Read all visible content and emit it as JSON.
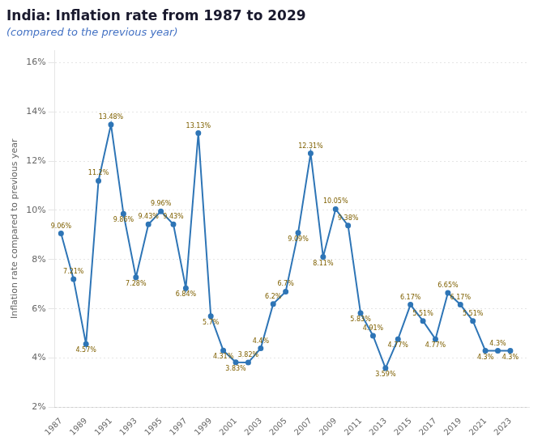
{
  "chart_data": {
    "type": "line",
    "title": "India: Inflation rate from 1987 to 2029",
    "subtitle": "(compared to the previous year)",
    "ylabel": "Inflation rate compared to previous year",
    "x": [
      1987,
      1988,
      1989,
      1990,
      1991,
      1992,
      1993,
      1994,
      1995,
      1996,
      1997,
      1998,
      1999,
      2000,
      2001,
      2002,
      2003,
      2004,
      2005,
      2006,
      2007,
      2008,
      2009,
      2010,
      2011,
      2012,
      2013,
      2014,
      2015,
      2016,
      2017,
      2018,
      2019,
      2020,
      2021,
      2022,
      2023
    ],
    "values": [
      9.06,
      7.21,
      4.57,
      11.2,
      13.48,
      9.86,
      7.28,
      9.43,
      9.96,
      9.43,
      6.84,
      13.13,
      5.7,
      4.31,
      3.83,
      3.82,
      4.4,
      6.2,
      6.7,
      9.09,
      12.31,
      8.11,
      10.05,
      9.38,
      5.83,
      4.91,
      3.59,
      4.77,
      6.17,
      5.51,
      4.77,
      6.65,
      6.17,
      5.51,
      4.3,
      4.3,
      4.3
    ],
    "value_labels": [
      "9.06%",
      "7.21%",
      "4.57%",
      "11.2%",
      "13.48%",
      "9.86%",
      "7.28%",
      "9.43%",
      "9.96%",
      "9.43%",
      "6.84%",
      "13.13%",
      "5.7%",
      "4.31%",
      "3.83%",
      "3.82%",
      "4.4%",
      "6.2%",
      "6.7%",
      "9.09%",
      "12.31%",
      "8.11%",
      "10.05%",
      "9.38%",
      "5.83%",
      "4.91%",
      "3.59%",
      "4.77%",
      "6.17%",
      "5.51%",
      "4.77%",
      "6.65%",
      "6.17%",
      "5.51%",
      "4.3%",
      "4.3%",
      "4.3%"
    ],
    "color": "#2e75b6",
    "marker": "circle",
    "line_style": "solid",
    "data_labels": true,
    "xlim": [
      1986.5,
      2024.5
    ],
    "xticks": [
      1987,
      1989,
      1991,
      1993,
      1995,
      1997,
      1999,
      2001,
      2003,
      2005,
      2007,
      2009,
      2011,
      2013,
      2015,
      2017,
      2019,
      2021,
      2023
    ],
    "ylim": [
      2,
      16.5
    ],
    "yticks": [
      {
        "value": 2,
        "label": "2%"
      },
      {
        "value": 4,
        "label": "4%"
      },
      {
        "value": 6,
        "label": "6%"
      },
      {
        "value": 8,
        "label": "8%"
      },
      {
        "value": 10,
        "label": "10%"
      },
      {
        "value": 12,
        "label": "12%"
      },
      {
        "value": 14,
        "label": "14%"
      },
      {
        "value": 16,
        "label": "16%"
      }
    ],
    "grid": true
  }
}
